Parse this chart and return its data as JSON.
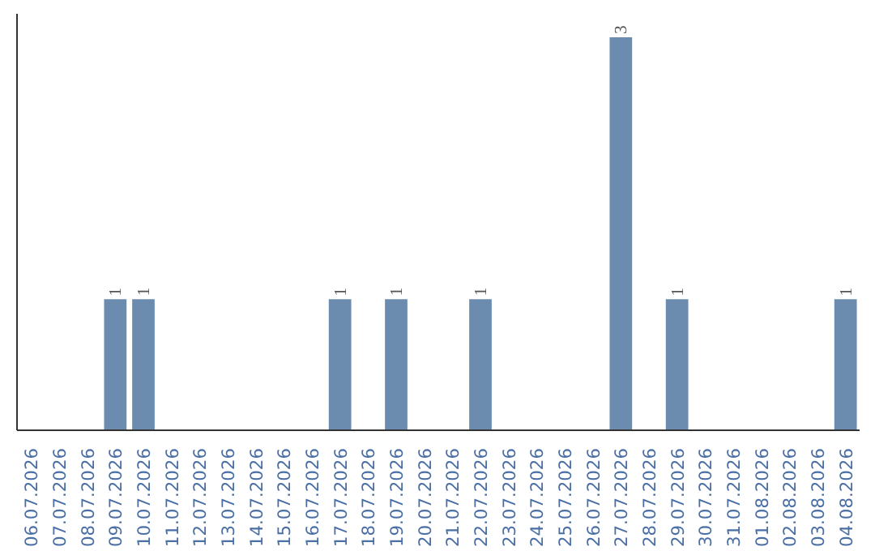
{
  "chart_data": {
    "type": "bar",
    "categories": [
      "06.07.2026",
      "07.07.2026",
      "08.07.2026",
      "09.07.2026",
      "10.07.2026",
      "11.07.2026",
      "12.07.2026",
      "13.07.2026",
      "14.07.2026",
      "15.07.2026",
      "16.07.2026",
      "17.07.2026",
      "18.07.2026",
      "19.07.2026",
      "20.07.2026",
      "21.07.2026",
      "22.07.2026",
      "23.07.2026",
      "24.07.2026",
      "25.07.2026",
      "26.07.2026",
      "27.07.2026",
      "28.07.2026",
      "29.07.2026",
      "30.07.2026",
      "31.07.2026",
      "01.08.2026",
      "02.08.2026",
      "03.08.2026",
      "04.08.2026"
    ],
    "values": [
      0,
      0,
      0,
      1,
      1,
      0,
      0,
      0,
      0,
      0,
      0,
      1,
      0,
      1,
      0,
      0,
      1,
      0,
      0,
      0,
      0,
      3,
      0,
      1,
      0,
      0,
      0,
      0,
      0,
      1
    ],
    "value_labels": [
      null,
      null,
      null,
      "1",
      "1",
      null,
      null,
      null,
      null,
      null,
      null,
      "1",
      null,
      "1",
      null,
      null,
      "1",
      null,
      null,
      null,
      null,
      "3",
      null,
      "1",
      null,
      null,
      null,
      null,
      null,
      "1"
    ],
    "color": "#6b8caf",
    "tick_labels": "x"
  }
}
